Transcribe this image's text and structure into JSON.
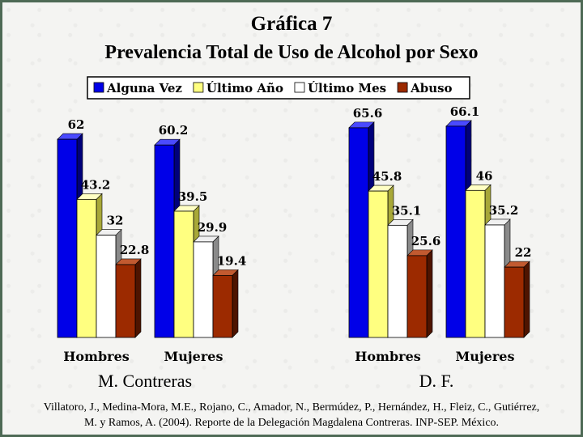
{
  "chart_data": {
    "type": "bar",
    "title": "Gráfica 7",
    "subtitle": "Prevalencia Total de Uso de Alcohol por Sexo",
    "legend_position": "top",
    "series": [
      {
        "name": "Alguna Vez",
        "color": "#0000e8"
      },
      {
        "name": "Último Año",
        "color": "#ffff80"
      },
      {
        "name": "Último Mes",
        "color": "#ffffff"
      },
      {
        "name": "Abuso",
        "color": "#9c2a00"
      }
    ],
    "groups": [
      {
        "label": "M. Contreras",
        "categories": [
          "Hombres",
          "Mujeres"
        ],
        "values": [
          [
            62,
            43.2,
            32,
            22.8
          ],
          [
            60.2,
            39.5,
            29.9,
            19.4
          ]
        ]
      },
      {
        "label": "D. F.",
        "categories": [
          "Hombres",
          "Mujeres"
        ],
        "values": [
          [
            65.6,
            45.8,
            35.1,
            25.6
          ],
          [
            66.1,
            46,
            35.2,
            22
          ]
        ]
      }
    ]
  },
  "source": {
    "line1": "Villatoro, J., Medina-Mora, M.E., Rojano, C., Amador, N., Bermúdez, P., Hernández, H., Fleiz, C., Gutiérrez,",
    "line2": "M. y Ramos, A. (2004). Reporte de la Delegación Magdalena Contreras. INP-SEP. México."
  }
}
